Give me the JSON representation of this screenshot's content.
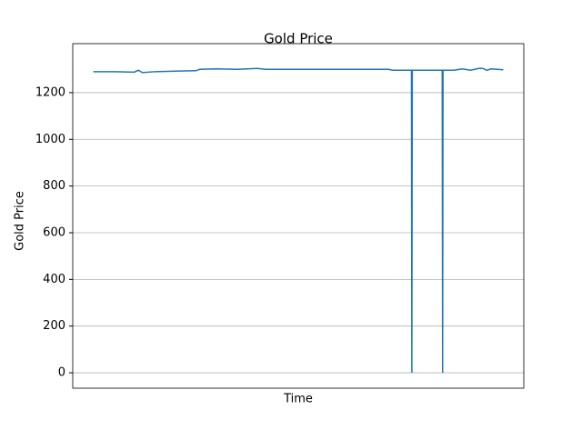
{
  "chart_data": {
    "type": "line",
    "title": "Gold Price",
    "x_label": "Time",
    "y_label": "Gold Price",
    "x": [
      0,
      5,
      10,
      11,
      12,
      15,
      20,
      25,
      26,
      30,
      35,
      40,
      42,
      50,
      60,
      72,
      73,
      77,
      77.6,
      77.7,
      77.8,
      85,
      85.1,
      85.2,
      85.3,
      88,
      90,
      92,
      94,
      95,
      96,
      97,
      100
    ],
    "series": [
      {
        "name": "Gold Price",
        "color": "#1f77b4",
        "values": [
          1290,
          1290,
          1288,
          1296,
          1286,
          1290,
          1292,
          1294,
          1300,
          1302,
          1300,
          1304,
          1300,
          1300,
          1300,
          1300,
          1296,
          1296,
          1296,
          0,
          1296,
          1296,
          1296,
          0,
          1296,
          1296,
          1302,
          1296,
          1304,
          1304,
          1296,
          1302,
          1298
        ]
      }
    ],
    "xlim": [
      -5,
      105
    ],
    "ylim": [
      -66,
      1410
    ],
    "yticks": [
      0,
      200,
      400,
      600,
      800,
      1000,
      1200
    ],
    "grid": true
  }
}
